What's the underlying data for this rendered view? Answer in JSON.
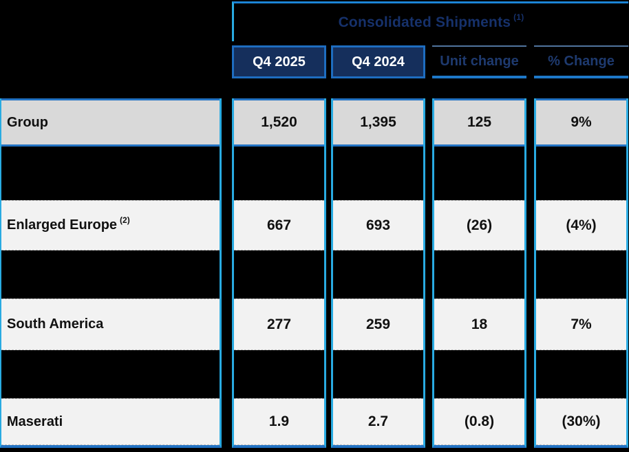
{
  "header": {
    "title": "Consolidated Shipments",
    "title_sup": "(1)",
    "columns": [
      {
        "label": "Q4 2025"
      },
      {
        "label": "Q4 2024"
      },
      {
        "label": "Unit change"
      },
      {
        "label": "% Change"
      }
    ]
  },
  "rows": [
    {
      "label": "Group",
      "sup": "",
      "q4_2025": "1,520",
      "q4_2024": "1,395",
      "unit_change": "125",
      "pct_change": "9%"
    },
    {
      "label": "Enlarged Europe",
      "sup": "(2)",
      "q4_2025": "667",
      "q4_2024": "693",
      "unit_change": "(26)",
      "pct_change": "(4%)"
    },
    {
      "label": "South America",
      "sup": "",
      "q4_2025": "277",
      "q4_2024": "259",
      "unit_change": "18",
      "pct_change": "7%"
    },
    {
      "label": "Maserati",
      "sup": "",
      "q4_2025": "1.9",
      "q4_2024": "2.7",
      "unit_change": "(0.8)",
      "pct_change": "(30%)"
    }
  ],
  "colors": {
    "cyan_border": "#29ABE2",
    "blue_border": "#2272C3",
    "navy_tile_fill": "#152F5C",
    "navy_text": "#1E3A6F",
    "group_row_fill": "#D9D9D9",
    "light_row_fill": "#F2F2F2",
    "background": "#000000"
  },
  "chart_data": {
    "type": "table",
    "title": "Consolidated Shipments (1)",
    "columns": [
      "",
      "Q4 2025",
      "Q4 2024",
      "Unit change",
      "% Change"
    ],
    "rows": [
      [
        "Group",
        "1,520",
        "1,395",
        "125",
        "9%"
      ],
      [
        "Enlarged Europe (2)",
        "667",
        "693",
        "(26)",
        "(4%)"
      ],
      [
        "South America",
        "277",
        "259",
        "18",
        "7%"
      ],
      [
        "Maserati",
        "1.9",
        "2.7",
        "(0.8)",
        "(30%)"
      ]
    ],
    "footnote_markers": [
      "(1)",
      "(2)"
    ]
  }
}
